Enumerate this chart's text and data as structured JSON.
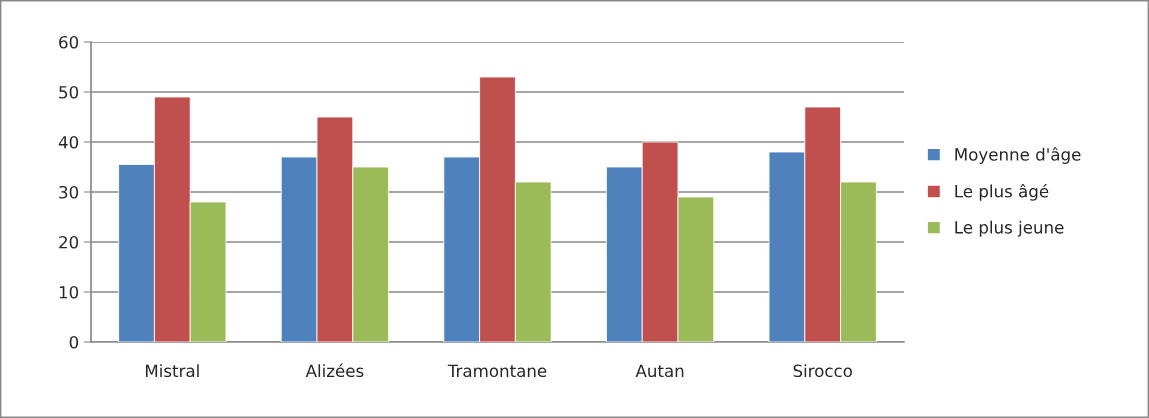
{
  "chart_data": {
    "type": "bar",
    "categories": [
      "Mistral",
      "Alizées",
      "Tramontane",
      "Autan",
      "Sirocco"
    ],
    "series": [
      {
        "name": "Moyenne d'âge",
        "color": "#4f81bd",
        "values": [
          35.5,
          37,
          37,
          35,
          38
        ]
      },
      {
        "name": "Le plus âgé",
        "color": "#c0504d",
        "values": [
          49,
          45,
          53,
          40,
          47
        ]
      },
      {
        "name": "Le plus jeune",
        "color": "#9bbb59",
        "values": [
          28,
          35,
          32,
          29,
          32
        ]
      }
    ],
    "ylim": [
      0,
      60
    ],
    "yticks": [
      0,
      10,
      20,
      30,
      40,
      50,
      60
    ],
    "grid": "y",
    "legend": "right"
  }
}
